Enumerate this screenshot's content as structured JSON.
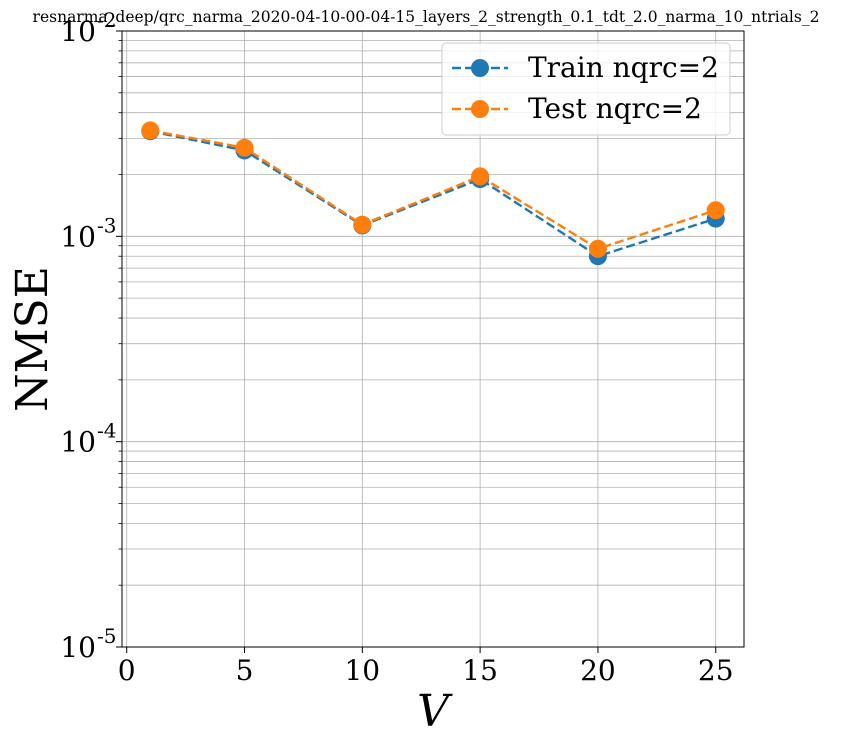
{
  "chart_data": {
    "type": "line",
    "title": "resnarma_deep/qrc_narma_2020-04-10-00-04-15_layers_2_strength_0.1_tdt_2.0_narma_10_ntrials_2",
    "xlabel": "V",
    "ylabel": "NMSE",
    "x": [
      1,
      5,
      10,
      15,
      20,
      25
    ],
    "xlim": [
      -0.2,
      26.2
    ],
    "ylim": [
      1e-05,
      0.01
    ],
    "yscale": "log",
    "grid": true,
    "legend_position": "top-right",
    "x_ticks": [
      {
        "value": 0,
        "label": "0"
      },
      {
        "value": 5,
        "label": "5"
      },
      {
        "value": 10,
        "label": "10"
      },
      {
        "value": 15,
        "label": "15"
      },
      {
        "value": 20,
        "label": "20"
      },
      {
        "value": 25,
        "label": "25"
      }
    ],
    "y_ticks": [
      {
        "value": 0.01,
        "base": "10",
        "exp": "-2"
      },
      {
        "value": 0.001,
        "base": "10",
        "exp": "-3"
      },
      {
        "value": 0.0001,
        "base": "10",
        "exp": "-4"
      },
      {
        "value": 1e-05,
        "base": "10",
        "exp": "-5"
      }
    ],
    "series": [
      {
        "name": "Train nqrc=2",
        "color": "#1f77b4",
        "values": [
          0.00325,
          0.00262,
          0.00113,
          0.0019,
          0.0008,
          0.00122
        ]
      },
      {
        "name": "Test nqrc=2",
        "color": "#ff7f0e",
        "values": [
          0.00328,
          0.0027,
          0.00114,
          0.00196,
          0.00087,
          0.00134
        ]
      }
    ]
  }
}
